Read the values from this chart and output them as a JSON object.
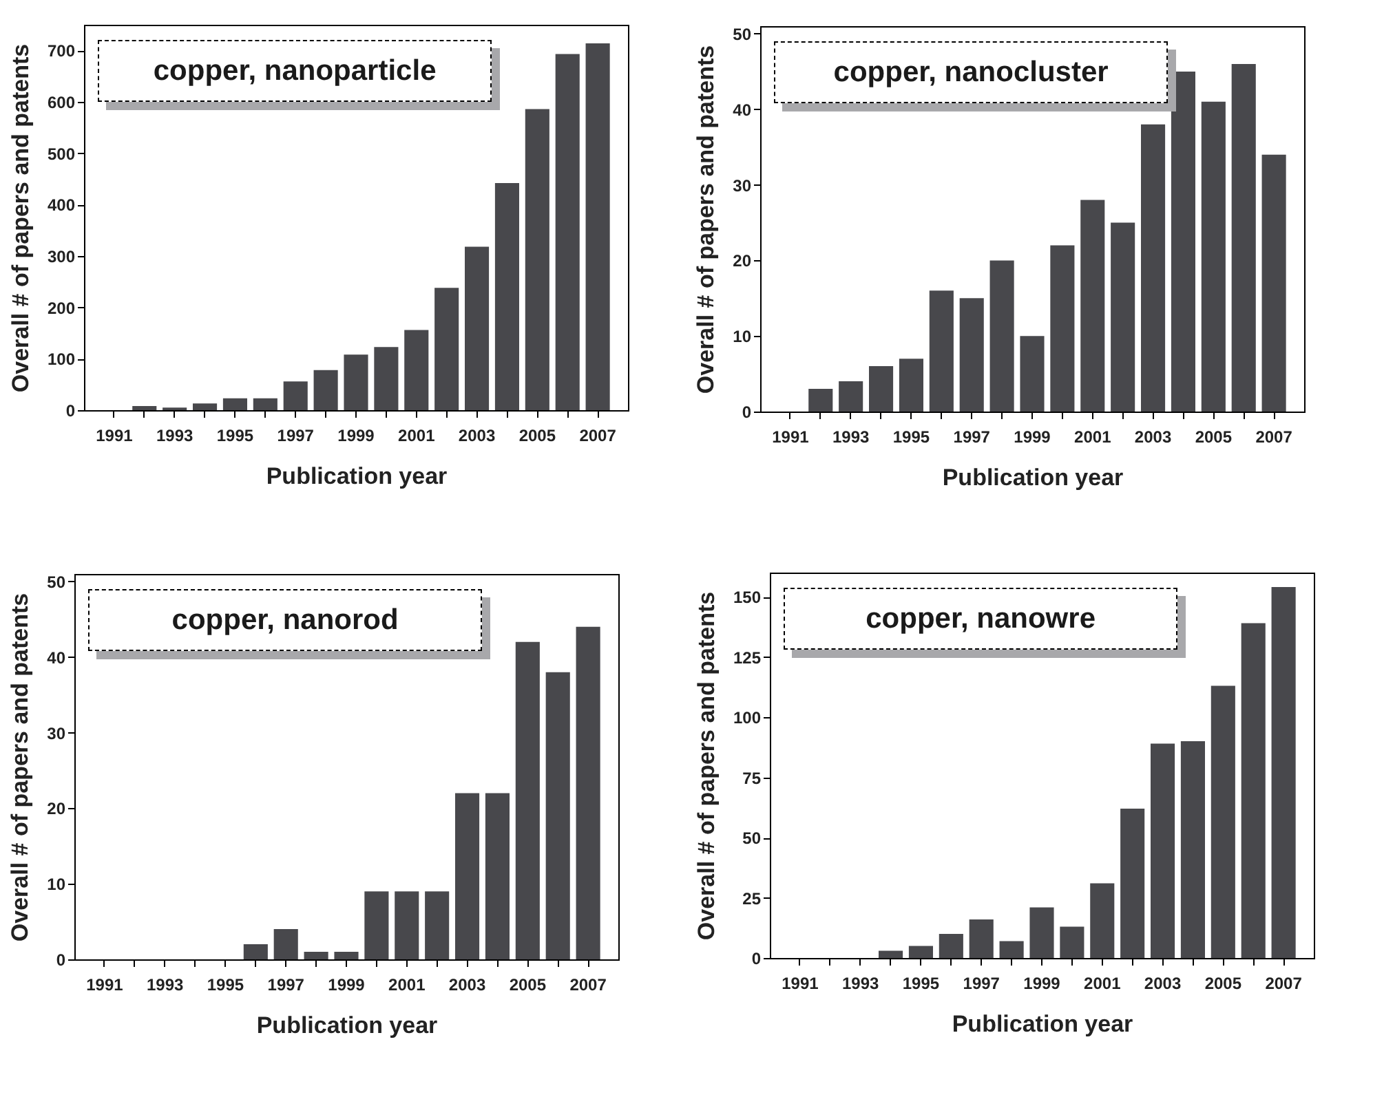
{
  "chart_data": [
    {
      "type": "bar",
      "categories": [
        "1991",
        null,
        "1993",
        null,
        "1995",
        null,
        "1997",
        null,
        "1999",
        null,
        "2001",
        null,
        "2003",
        null,
        "2005",
        null,
        "2007"
      ],
      "values": [
        0,
        8,
        5,
        13,
        23,
        23,
        56,
        78,
        108,
        123,
        156,
        238,
        318,
        442,
        586,
        693,
        714
      ],
      "color": "#48484c",
      "ylim": [
        0,
        750
      ],
      "yticks": [
        0,
        100,
        200,
        300,
        400,
        500,
        600,
        700
      ],
      "xlabel": "Publication year",
      "ylabel": "Overall # of papers and patents",
      "annotations": [
        "copper, nanoparticle"
      ]
    },
    {
      "type": "bar",
      "categories": [
        "1991",
        null,
        "1993",
        null,
        "1995",
        null,
        "1997",
        null,
        "1999",
        null,
        "2001",
        null,
        "2003",
        null,
        "2005",
        null,
        "2007"
      ],
      "values": [
        0,
        3,
        4,
        6,
        7,
        16,
        15,
        20,
        10,
        22,
        28,
        25,
        38,
        45,
        41,
        46,
        34
      ],
      "color": "#48484c",
      "ylim": [
        0,
        51
      ],
      "yticks": [
        0,
        10,
        20,
        30,
        40,
        50
      ],
      "xlabel": "Publication year",
      "ylabel": "Overall # of papers and patents",
      "annotations": [
        "copper, nanocluster"
      ]
    },
    {
      "type": "bar",
      "categories": [
        "1991",
        null,
        "1993",
        null,
        "1995",
        null,
        "1997",
        null,
        "1999",
        null,
        "2001",
        null,
        "2003",
        null,
        "2005",
        null,
        "2007"
      ],
      "values": [
        0,
        0,
        0,
        0,
        0,
        2,
        4,
        1,
        1,
        9,
        9,
        9,
        22,
        22,
        42,
        38,
        44
      ],
      "color": "#48484c",
      "ylim": [
        0,
        51
      ],
      "yticks": [
        0,
        10,
        20,
        30,
        40,
        50
      ],
      "xlabel": "Publication year",
      "ylabel": "Overall # of papers and patents",
      "annotations": [
        "copper, nanorod"
      ]
    },
    {
      "type": "bar",
      "categories": [
        "1991",
        null,
        "1993",
        null,
        "1995",
        null,
        "1997",
        null,
        "1999",
        null,
        "2001",
        null,
        "2003",
        null,
        "2005",
        null,
        "2007"
      ],
      "values": [
        0,
        0,
        0,
        3,
        5,
        10,
        16,
        7,
        21,
        13,
        31,
        62,
        89,
        90,
        113,
        139,
        154
      ],
      "color": "#48484c",
      "ylim": [
        0,
        160
      ],
      "yticks": [
        0,
        25,
        50,
        75,
        100,
        125,
        150
      ],
      "xlabel": "Publication year",
      "ylabel": "Overall # of papers and patents",
      "annotations": [
        "copper, nanowre"
      ]
    }
  ]
}
